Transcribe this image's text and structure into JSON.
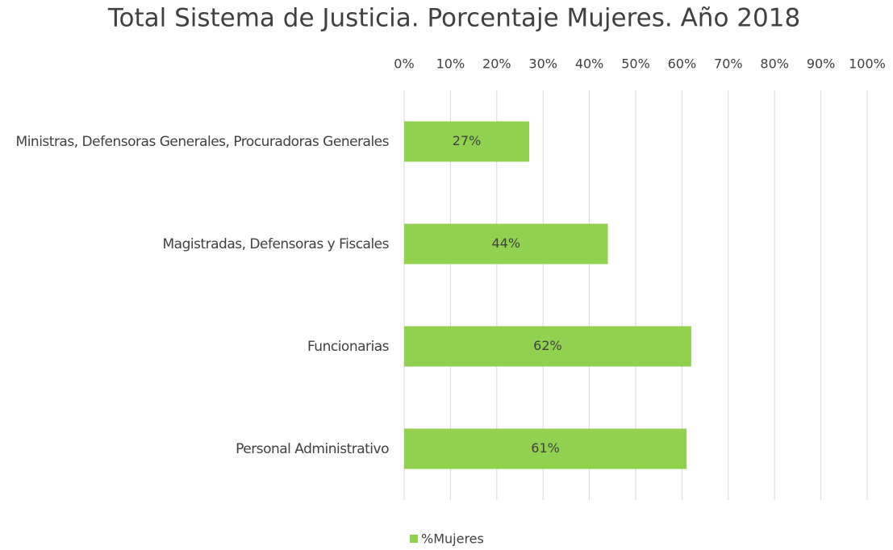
{
  "chart_data": {
    "type": "hbar",
    "title": "Total Sistema de Justicia. Porcentaje Mujeres. Año 2018",
    "categories": [
      "Ministras, Defensoras Generales, Procuradoras Generales",
      "Magistradas, Defensoras y Fiscales",
      "Funcionarias",
      "Personal Administrativo"
    ],
    "series": [
      {
        "name": "%Mujeres",
        "color": "#92d050",
        "values": [
          27,
          44,
          62,
          61
        ],
        "value_labels": [
          "27%",
          "44%",
          "62%",
          "61%"
        ]
      }
    ],
    "xlim": [
      0,
      100
    ],
    "xticks": [
      {
        "value": 0,
        "label": "0%"
      },
      {
        "value": 10,
        "label": "10%"
      },
      {
        "value": 20,
        "label": "20%"
      },
      {
        "value": 30,
        "label": "30%"
      },
      {
        "value": 40,
        "label": "40%"
      },
      {
        "value": 50,
        "label": "50%"
      },
      {
        "value": 60,
        "label": "60%"
      },
      {
        "value": 70,
        "label": "70%"
      },
      {
        "value": 80,
        "label": "80%"
      },
      {
        "value": 90,
        "label": "90%"
      },
      {
        "value": 100,
        "label": "100%"
      }
    ],
    "grid": true,
    "legend": "bottom"
  }
}
